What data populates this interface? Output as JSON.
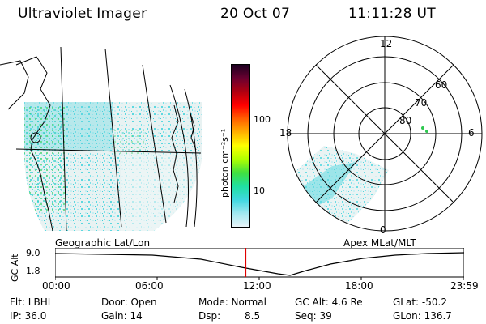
{
  "header": {
    "instrument": "Ultraviolet Imager",
    "date": "20 Oct 07",
    "time": "11:11:28 UT"
  },
  "left_panel": {
    "label": "Geographic Lat/Lon"
  },
  "right_panel": {
    "label": "Apex MLat/MLT",
    "mlt_labels": {
      "top": "12",
      "left": "18",
      "right": "6",
      "bottom": "0"
    },
    "lat_labels": [
      "60",
      "70",
      "80"
    ]
  },
  "colorbar": {
    "units": "photon cm⁻²s⁻¹",
    "ticks": [
      "100",
      "10"
    ],
    "colors_top_to_bottom": [
      "#1a0020",
      "#6a0030",
      "#b00010",
      "#ff0000",
      "#ff6000",
      "#ffb000",
      "#ffff00",
      "#b0ff00",
      "#40e040",
      "#20e0a0",
      "#40d8e0",
      "#a0e8f0",
      "#e8f4f8"
    ]
  },
  "altitude_plot": {
    "ylabel": "GC Alt",
    "yticks": [
      "9.0",
      "1.8"
    ],
    "xticks": [
      "00:00",
      "06:00",
      "12:00",
      "18:00",
      "23:59"
    ],
    "marker_color": "#e00000",
    "marker_time_hours": 11.19
  },
  "status": {
    "flt": "Flt: LBHL",
    "ip": "IP: 36.0",
    "door": "Door: Open",
    "gain": "Gain: 14",
    "mode": "Mode: Normal",
    "dsp": "Dsp:",
    "dsp_value": "8.5",
    "gc_alt": "GC Alt: 4.6 Re",
    "seq": "Seq: 39",
    "glat": "GLat: -50.2",
    "glon": "GLon: 136.7"
  }
}
